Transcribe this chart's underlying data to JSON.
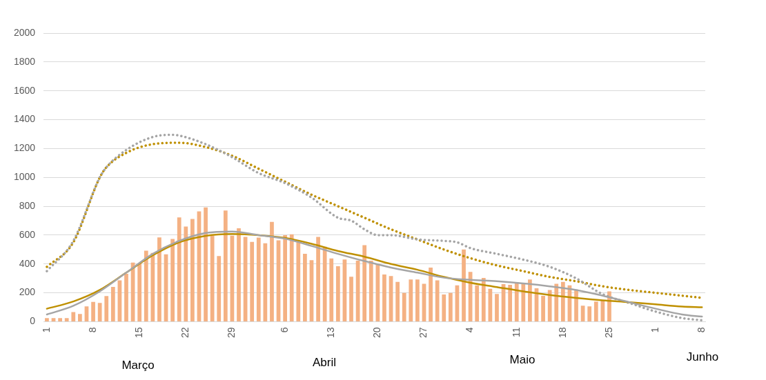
{
  "chart_data": {
    "type": "bar",
    "categories": [
      "1",
      null,
      null,
      null,
      null,
      null,
      null,
      "8",
      null,
      null,
      null,
      null,
      null,
      null,
      "15",
      null,
      null,
      null,
      null,
      null,
      null,
      "22",
      null,
      null,
      null,
      null,
      null,
      null,
      "29",
      null,
      null,
      null,
      null,
      null,
      null,
      null,
      "6",
      null,
      null,
      null,
      null,
      null,
      null,
      "13",
      null,
      null,
      null,
      null,
      null,
      null,
      "20",
      null,
      null,
      null,
      null,
      null,
      null,
      "27",
      null,
      null,
      null,
      null,
      null,
      null,
      "4",
      null,
      null,
      null,
      null,
      null,
      null,
      "11",
      null,
      null,
      null,
      null,
      null,
      null,
      "18",
      null,
      null,
      null,
      null,
      null,
      null,
      "25",
      null,
      null,
      null,
      null,
      null,
      null,
      "1",
      null,
      null,
      null,
      null,
      null,
      null,
      "8"
    ],
    "series": [
      {
        "color": "#f4b183",
        "values": [
          25,
          25,
          25,
          25,
          66,
          53,
          106,
          137,
          130,
          178,
          241,
          286,
          332,
          409,
          405,
          492,
          476,
          584,
          467,
          573,
          723,
          659,
          712,
          765,
          792,
          596,
          455,
          770,
          596,
          647,
          588,
          553,
          583,
          543,
          692,
          564,
          599,
          606,
          551,
          471,
          426,
          588,
          519,
          438,
          385,
          431,
          311,
          423,
          530,
          423,
          401,
          327,
          316,
          276,
          199,
          292,
          292,
          263,
          375,
          287,
          188,
          199,
          252,
          500,
          345,
          252,
          303,
          228,
          192,
          260,
          255,
          274,
          269,
          292,
          232,
          179,
          220,
          263,
          276,
          252,
          223,
          111,
          106,
          139,
          147,
          210,
          null,
          null,
          null,
          null,
          null,
          null,
          null,
          null,
          null,
          null,
          null,
          null,
          null,
          null
        ]
      },
      {
        "type": "line",
        "color": "#a5a5a5",
        "line_style": "solid",
        "values": [
          50,
          null,
          null,
          null,
          110,
          null,
          null,
          null,
          210,
          null,
          null,
          null,
          340,
          null,
          null,
          null,
          470,
          null,
          null,
          null,
          560,
          null,
          null,
          null,
          615,
          null,
          null,
          null,
          625,
          null,
          null,
          null,
          600,
          null,
          null,
          null,
          575,
          null,
          null,
          null,
          525,
          null,
          null,
          null,
          470,
          null,
          null,
          null,
          420,
          null,
          null,
          null,
          375,
          null,
          null,
          null,
          340,
          null,
          null,
          null,
          305,
          null,
          null,
          null,
          290,
          null,
          null,
          null,
          280,
          null,
          null,
          null,
          265,
          null,
          null,
          null,
          245,
          null,
          null,
          null,
          220,
          null,
          null,
          null,
          180,
          null,
          null,
          null,
          135,
          null,
          null,
          null,
          90,
          null,
          null,
          null,
          50,
          null,
          null,
          35
        ]
      },
      {
        "type": "line",
        "color": "#bf9000",
        "line_style": "solid",
        "values": [
          90,
          null,
          null,
          null,
          140,
          null,
          null,
          null,
          220,
          null,
          null,
          null,
          340,
          null,
          null,
          null,
          460,
          null,
          null,
          null,
          550,
          null,
          null,
          null,
          595,
          null,
          null,
          null,
          608,
          null,
          null,
          null,
          600,
          null,
          null,
          null,
          580,
          null,
          null,
          null,
          540,
          null,
          null,
          null,
          490,
          null,
          null,
          null,
          450,
          null,
          null,
          null,
          400,
          null,
          null,
          null,
          360,
          null,
          null,
          null,
          310,
          null,
          null,
          null,
          270,
          null,
          null,
          null,
          240,
          null,
          null,
          null,
          210,
          null,
          null,
          null,
          185,
          null,
          null,
          null,
          165,
          null,
          null,
          null,
          148,
          null,
          null,
          null,
          135,
          null,
          null,
          null,
          120,
          null,
          null,
          null,
          105,
          null,
          null,
          100
        ]
      },
      {
        "type": "line",
        "color": "#a5a5a5",
        "line_style": "dotted",
        "values": [
          350,
          null,
          null,
          null,
          560,
          null,
          null,
          null,
          1000,
          1070,
          null,
          null,
          1190,
          null,
          null,
          null,
          1280,
          null,
          null,
          1295,
          1290,
          null,
          null,
          null,
          1230,
          null,
          null,
          null,
          1140,
          null,
          null,
          null,
          1030,
          null,
          null,
          null,
          960,
          null,
          null,
          null,
          860,
          null,
          null,
          null,
          720,
          null,
          700,
          null,
          640,
          null,
          600,
          null,
          600,
          null,
          null,
          null,
          570,
          null,
          null,
          null,
          560,
          null,
          550,
          null,
          510,
          null,
          null,
          null,
          470,
          null,
          null,
          null,
          430,
          null,
          null,
          null,
          380,
          null,
          null,
          null,
          300,
          null,
          null,
          null,
          190,
          null,
          null,
          null,
          130,
          null,
          null,
          null,
          70,
          null,
          null,
          null,
          25,
          null,
          null,
          10
        ]
      },
      {
        "type": "line",
        "color": "#bf9000",
        "line_style": "dotted",
        "values": [
          380,
          null,
          null,
          null,
          550,
          null,
          null,
          null,
          1000,
          1070,
          null,
          null,
          1170,
          null,
          null,
          null,
          1230,
          null,
          null,
          null,
          1240,
          null,
          null,
          null,
          1210,
          null,
          null,
          null,
          1150,
          null,
          null,
          null,
          1060,
          null,
          null,
          null,
          970,
          null,
          null,
          null,
          880,
          null,
          null,
          null,
          800,
          null,
          null,
          null,
          720,
          null,
          null,
          null,
          640,
          null,
          null,
          null,
          570,
          null,
          null,
          null,
          500,
          null,
          null,
          null,
          440,
          null,
          null,
          null,
          390,
          null,
          null,
          null,
          350,
          null,
          null,
          null,
          310,
          null,
          null,
          null,
          280,
          null,
          null,
          null,
          245,
          null,
          null,
          null,
          220,
          null,
          null,
          null,
          200,
          null,
          null,
          null,
          180,
          null,
          null,
          165
        ]
      }
    ],
    "ylim": [
      0,
      2000
    ],
    "yticks": [
      0,
      200,
      400,
      600,
      800,
      1000,
      1200,
      1400,
      1600,
      1800,
      2000
    ],
    "grid": "y",
    "legend": false,
    "annotations": [
      "Março",
      "Abril",
      "Maio",
      "Junho"
    ]
  }
}
